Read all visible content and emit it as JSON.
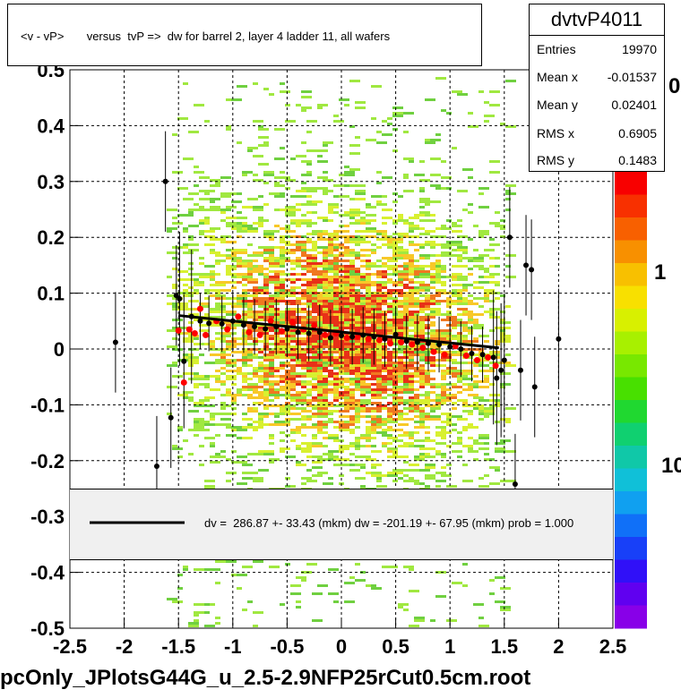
{
  "chart_data": {
    "type": "scatter",
    "title": "<v - vP>       versus  tvP =>  dw for barrel 2, layer 4 ladder 11, all wafers",
    "xlim": [
      -2.5,
      2.5
    ],
    "ylim": [
      -0.5,
      0.5
    ],
    "x_ticks": [
      "-2.5",
      "-2",
      "-1.5",
      "-1",
      "-0.5",
      "0",
      "0.5",
      "1",
      "1.5",
      "2",
      "2.5"
    ],
    "y_ticks": [
      "-0.5",
      "-0.4",
      "-0.3",
      "-0.2",
      "-0.1",
      "0",
      "0.1",
      "0.2",
      "0.3",
      "0.4",
      "0.5"
    ],
    "grid": true,
    "colorbar_labels": [
      "10",
      "1",
      "0"
    ],
    "stats": {
      "name": "dvtvP4011",
      "rows": [
        {
          "label": "Entries",
          "value": "19970"
        },
        {
          "label": "Mean x",
          "value": "-0.01537"
        },
        {
          "label": "Mean y",
          "value": "0.02401"
        },
        {
          "label": "RMS x",
          "value": "0.6905"
        },
        {
          "label": "RMS y",
          "value": "0.1483"
        }
      ]
    },
    "fit": {
      "legend": "dv =  286.87 +- 33.43 (mkm) dw = -201.19 +- 67.95 (mkm) prob = 1.000",
      "x": [
        -1.5,
        1.45
      ],
      "y": [
        0.06,
        0.002
      ]
    },
    "black_points": [
      [
        -2.08,
        0.012
      ],
      [
        -1.7,
        -0.21
      ],
      [
        -1.62,
        0.3
      ],
      [
        -1.57,
        -0.123
      ],
      [
        -1.52,
        0.096
      ],
      [
        -1.49,
        0.09
      ],
      [
        -1.45,
        -0.022
      ],
      [
        -1.38,
        0.058
      ],
      [
        -1.3,
        0.05
      ],
      [
        -1.22,
        0.046
      ],
      [
        -1.1,
        0.045
      ],
      [
        -1.0,
        0.05
      ],
      [
        -0.9,
        0.043
      ],
      [
        -0.8,
        0.04
      ],
      [
        -0.7,
        0.036
      ],
      [
        -0.6,
        0.04
      ],
      [
        -0.5,
        0.036
      ],
      [
        -0.4,
        0.03
      ],
      [
        -0.3,
        0.028
      ],
      [
        -0.2,
        0.03
      ],
      [
        -0.1,
        0.02
      ],
      [
        0.0,
        0.024
      ],
      [
        0.1,
        0.022
      ],
      [
        0.2,
        0.025
      ],
      [
        0.3,
        0.022
      ],
      [
        0.4,
        0.018
      ],
      [
        0.5,
        0.026
      ],
      [
        0.6,
        0.014
      ],
      [
        0.7,
        0.012
      ],
      [
        0.8,
        0.01
      ],
      [
        0.9,
        0.008
      ],
      [
        1.0,
        0.004
      ],
      [
        1.1,
        0.0
      ],
      [
        1.2,
        -0.008
      ],
      [
        1.3,
        -0.01
      ],
      [
        1.4,
        -0.015
      ],
      [
        1.43,
        -0.052
      ],
      [
        1.47,
        -0.038
      ],
      [
        1.5,
        -0.02
      ],
      [
        1.55,
        0.2
      ],
      [
        1.6,
        -0.242
      ],
      [
        1.65,
        -0.038
      ],
      [
        1.7,
        0.15
      ],
      [
        1.75,
        0.142
      ],
      [
        1.78,
        -0.068
      ],
      [
        2.0,
        0.018
      ]
    ],
    "red_points": [
      [
        -1.5,
        0.033
      ],
      [
        -1.45,
        -0.06
      ],
      [
        -1.4,
        0.035
      ],
      [
        -1.35,
        0.028
      ],
      [
        -1.3,
        0.072
      ],
      [
        -1.25,
        0.025
      ],
      [
        -1.15,
        0.05
      ],
      [
        -1.05,
        0.035
      ],
      [
        -0.95,
        0.058
      ],
      [
        -0.85,
        0.03
      ],
      [
        -0.75,
        0.025
      ],
      [
        -0.65,
        0.05
      ],
      [
        -0.55,
        0.032
      ],
      [
        -0.45,
        0.048
      ],
      [
        -0.35,
        0.035
      ],
      [
        -0.25,
        0.042
      ],
      [
        -0.15,
        0.025
      ],
      [
        -0.05,
        0.028
      ],
      [
        0.05,
        0.02
      ],
      [
        0.15,
        0.022
      ],
      [
        0.25,
        0.018
      ],
      [
        0.35,
        0.016
      ],
      [
        0.45,
        0.01
      ],
      [
        0.55,
        0.012
      ],
      [
        0.65,
        0.008
      ],
      [
        0.75,
        0.002
      ],
      [
        0.85,
        -0.005
      ],
      [
        0.95,
        -0.01
      ],
      [
        1.05,
        0.005
      ],
      [
        1.15,
        -0.012
      ],
      [
        1.25,
        -0.02
      ],
      [
        1.35,
        -0.015
      ],
      [
        1.42,
        -0.03
      ]
    ]
  },
  "footer": {
    "filename": "pcOnly_JPlotsG44G_u_2.5-2.9NFP25rCut0.5cm.root"
  }
}
